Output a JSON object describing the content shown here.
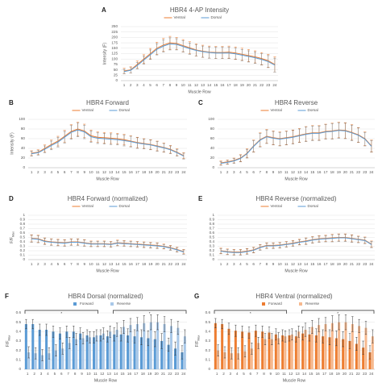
{
  "chart_data": [
    {
      "type": "line",
      "panel": "A",
      "title": "HBR4 4-AP Intensity",
      "x_label": "Muscle Row",
      "y_label": "Intensity (F)",
      "categories": [
        "1",
        "2",
        "3",
        "4",
        "5",
        "6",
        "7",
        "8",
        "9",
        "10",
        "11",
        "12",
        "13",
        "14",
        "15",
        "16",
        "17",
        "18",
        "19",
        "20",
        "21",
        "22",
        "23",
        "24"
      ],
      "ylim": [
        0,
        250
      ],
      "yticks": [
        0,
        25,
        50,
        75,
        100,
        125,
        150,
        175,
        200,
        225,
        250
      ],
      "grid": true,
      "series": [
        {
          "name": "Ventral",
          "color": "#ed7d31",
          "values": [
            45,
            50,
            75,
            100,
            125,
            150,
            165,
            175,
            172,
            162,
            152,
            142,
            136,
            132,
            130,
            130,
            132,
            128,
            122,
            116,
            110,
            102,
            92,
            75
          ],
          "errors": [
            12,
            14,
            16,
            20,
            24,
            28,
            30,
            30,
            28,
            28,
            28,
            28,
            28,
            28,
            28,
            28,
            28,
            28,
            28,
            28,
            28,
            28,
            30,
            35
          ]
        },
        {
          "name": "Dorsal",
          "color": "#5b9bd5",
          "values": [
            42,
            48,
            70,
            95,
            120,
            145,
            160,
            170,
            168,
            158,
            148,
            140,
            134,
            130,
            128,
            128,
            128,
            124,
            118,
            112,
            106,
            98,
            88,
            72
          ],
          "errors": [
            10,
            12,
            15,
            18,
            22,
            26,
            28,
            28,
            26,
            26,
            26,
            26,
            26,
            26,
            26,
            26,
            26,
            26,
            26,
            26,
            26,
            26,
            28,
            32
          ]
        }
      ]
    },
    {
      "type": "line",
      "panel": "B",
      "title": "HBR4 Forward",
      "x_label": "Muscle Row",
      "y_label": "Intensity (F)",
      "categories": [
        "1",
        "2",
        "3",
        "4",
        "5",
        "6",
        "7",
        "8",
        "9",
        "10",
        "11",
        "12",
        "13",
        "14",
        "15",
        "16",
        "17",
        "18",
        "19",
        "20",
        "21",
        "22",
        "23",
        "24"
      ],
      "ylim": [
        0,
        100
      ],
      "yticks": [
        0,
        20,
        40,
        60,
        80,
        100
      ],
      "grid": true,
      "series": [
        {
          "name": "Ventral",
          "color": "#ed7d31",
          "values": [
            30,
            32,
            40,
            48,
            55,
            65,
            75,
            80,
            76,
            66,
            63,
            62,
            61,
            60,
            58,
            55,
            52,
            50,
            48,
            45,
            42,
            38,
            32,
            25
          ],
          "errors": [
            5,
            5,
            7,
            9,
            10,
            12,
            14,
            14,
            14,
            12,
            11,
            11,
            11,
            11,
            11,
            11,
            11,
            10,
            10,
            10,
            9,
            8,
            7,
            6
          ]
        },
        {
          "name": "Dorsal",
          "color": "#5b9bd5",
          "values": [
            29,
            31,
            38,
            46,
            53,
            63,
            73,
            78,
            74,
            64,
            61,
            60,
            59,
            58,
            56,
            54,
            51,
            49,
            47,
            44,
            41,
            37,
            31,
            24
          ],
          "errors": [
            5,
            5,
            7,
            9,
            10,
            12,
            14,
            14,
            14,
            12,
            11,
            11,
            11,
            11,
            11,
            11,
            11,
            10,
            10,
            10,
            9,
            8,
            7,
            6
          ]
        }
      ]
    },
    {
      "type": "line",
      "panel": "C",
      "title": "HBR4 Reverse",
      "x_label": "Muscle Row",
      "categories": [
        "1",
        "2",
        "3",
        "4",
        "5",
        "6",
        "7",
        "8",
        "9",
        "10",
        "11",
        "12",
        "13",
        "14",
        "15",
        "16",
        "17",
        "18",
        "19",
        "20",
        "21",
        "22",
        "23",
        "24"
      ],
      "ylim": [
        0,
        100
      ],
      "yticks": [
        0,
        20,
        40,
        60,
        80,
        100
      ],
      "grid": true,
      "series": [
        {
          "name": "Ventral",
          "color": "#ed7d31",
          "values": [
            10,
            12,
            15,
            20,
            30,
            45,
            58,
            65,
            62,
            60,
            62,
            64,
            67,
            70,
            72,
            72,
            75,
            76,
            78,
            77,
            73,
            68,
            60,
            45
          ],
          "errors": [
            4,
            4,
            5,
            7,
            9,
            12,
            14,
            14,
            14,
            14,
            14,
            14,
            14,
            15,
            15,
            15,
            15,
            16,
            16,
            16,
            16,
            15,
            14,
            12
          ]
        },
        {
          "name": "Dorsal",
          "color": "#5b9bd5",
          "values": [
            9,
            11,
            14,
            19,
            29,
            44,
            57,
            64,
            61,
            59,
            61,
            63,
            66,
            69,
            71,
            71,
            74,
            75,
            77,
            76,
            72,
            67,
            59,
            44
          ],
          "errors": [
            4,
            4,
            5,
            7,
            9,
            12,
            14,
            14,
            14,
            14,
            14,
            14,
            14,
            15,
            15,
            15,
            15,
            16,
            16,
            16,
            16,
            15,
            14,
            12
          ]
        }
      ]
    },
    {
      "type": "line",
      "panel": "D",
      "title": "HBR4 Forward (normalized)",
      "x_label": "Muscle Row",
      "y_label": {
        "main": "F/F",
        "sub": "Max"
      },
      "categories": [
        "1",
        "2",
        "3",
        "4",
        "5",
        "6",
        "7",
        "8",
        "9",
        "10",
        "11",
        "12",
        "13",
        "14",
        "15",
        "16",
        "17",
        "18",
        "19",
        "20",
        "21",
        "22",
        "23",
        "24"
      ],
      "ylim": [
        0,
        1
      ],
      "yticks": [
        0,
        0.1,
        0.2,
        0.3,
        0.4,
        0.5,
        0.6,
        0.7,
        0.8,
        0.9,
        1
      ],
      "grid": true,
      "series": [
        {
          "name": "Ventral",
          "color": "#ed7d31",
          "values": [
            0.48,
            0.47,
            0.42,
            0.4,
            0.39,
            0.38,
            0.4,
            0.4,
            0.38,
            0.36,
            0.36,
            0.36,
            0.35,
            0.38,
            0.37,
            0.36,
            0.35,
            0.34,
            0.33,
            0.32,
            0.3,
            0.27,
            0.23,
            0.18
          ],
          "errors": [
            0.08,
            0.08,
            0.07,
            0.07,
            0.07,
            0.07,
            0.07,
            0.07,
            0.07,
            0.06,
            0.06,
            0.06,
            0.06,
            0.06,
            0.06,
            0.06,
            0.06,
            0.06,
            0.06,
            0.06,
            0.05,
            0.05,
            0.05,
            0.05
          ]
        },
        {
          "name": "Dorsal",
          "color": "#5b9bd5",
          "values": [
            0.47,
            0.46,
            0.41,
            0.39,
            0.38,
            0.37,
            0.39,
            0.39,
            0.37,
            0.35,
            0.35,
            0.35,
            0.34,
            0.37,
            0.36,
            0.35,
            0.34,
            0.33,
            0.32,
            0.31,
            0.29,
            0.26,
            0.22,
            0.17
          ],
          "errors": [
            0.08,
            0.08,
            0.07,
            0.07,
            0.07,
            0.07,
            0.07,
            0.07,
            0.07,
            0.06,
            0.06,
            0.06,
            0.06,
            0.06,
            0.06,
            0.06,
            0.06,
            0.06,
            0.06,
            0.06,
            0.05,
            0.05,
            0.05,
            0.05
          ]
        }
      ]
    },
    {
      "type": "line",
      "panel": "E",
      "title": "HBR4 Reverse (normalized)",
      "x_label": "Muscle Row",
      "categories": [
        "1",
        "2",
        "3",
        "4",
        "5",
        "6",
        "7",
        "8",
        "9",
        "10",
        "11",
        "12",
        "13",
        "14",
        "15",
        "16",
        "17",
        "18",
        "19",
        "20",
        "21",
        "22",
        "23",
        "24"
      ],
      "ylim": [
        0,
        1
      ],
      "yticks": [
        0,
        0.1,
        0.2,
        0.3,
        0.4,
        0.5,
        0.6,
        0.7,
        0.8,
        0.9,
        1
      ],
      "grid": true,
      "series": [
        {
          "name": "Ventral",
          "color": "#ed7d31",
          "values": [
            0.2,
            0.18,
            0.17,
            0.17,
            0.19,
            0.22,
            0.28,
            0.32,
            0.32,
            0.33,
            0.35,
            0.37,
            0.4,
            0.42,
            0.45,
            0.47,
            0.48,
            0.49,
            0.5,
            0.5,
            0.48,
            0.46,
            0.44,
            0.35
          ],
          "errors": [
            0.06,
            0.06,
            0.06,
            0.06,
            0.06,
            0.06,
            0.06,
            0.06,
            0.06,
            0.06,
            0.06,
            0.06,
            0.06,
            0.07,
            0.07,
            0.07,
            0.07,
            0.08,
            0.08,
            0.08,
            0.08,
            0.07,
            0.07,
            0.07
          ]
        },
        {
          "name": "Dorsal",
          "color": "#5b9bd5",
          "values": [
            0.19,
            0.17,
            0.16,
            0.16,
            0.18,
            0.21,
            0.27,
            0.31,
            0.31,
            0.32,
            0.34,
            0.36,
            0.39,
            0.41,
            0.44,
            0.46,
            0.47,
            0.48,
            0.49,
            0.49,
            0.47,
            0.45,
            0.43,
            0.34
          ],
          "errors": [
            0.06,
            0.06,
            0.06,
            0.06,
            0.06,
            0.06,
            0.06,
            0.06,
            0.06,
            0.06,
            0.06,
            0.06,
            0.06,
            0.07,
            0.07,
            0.07,
            0.07,
            0.08,
            0.08,
            0.08,
            0.08,
            0.07,
            0.07,
            0.07
          ]
        }
      ]
    },
    {
      "type": "bar",
      "panel": "F",
      "title": "HBR4 Dorsal (normalized)",
      "x_label": "Muscle Row",
      "y_label": {
        "main": "F/F",
        "sub": "Max"
      },
      "categories": [
        "1",
        "2",
        "3",
        "4",
        "5",
        "6",
        "7",
        "8",
        "9",
        "10",
        "11",
        "12",
        "13",
        "14",
        "15",
        "16",
        "17",
        "18",
        "19",
        "20",
        "21",
        "22",
        "23",
        "24"
      ],
      "ylim": [
        0,
        0.6
      ],
      "yticks": [
        0,
        0.1,
        0.2,
        0.3,
        0.4,
        0.5,
        0.6
      ],
      "grid": true,
      "annotations": [
        "*",
        "*"
      ],
      "series": [
        {
          "name": "Forward",
          "color": "#5b9bd5",
          "values": [
            0.48,
            0.48,
            0.42,
            0.42,
            0.4,
            0.38,
            0.4,
            0.4,
            0.38,
            0.36,
            0.34,
            0.36,
            0.35,
            0.37,
            0.37,
            0.36,
            0.35,
            0.34,
            0.33,
            0.32,
            0.3,
            0.26,
            0.22,
            0.18
          ],
          "errors": [
            0.05,
            0.05,
            0.06,
            0.06,
            0.06,
            0.06,
            0.06,
            0.06,
            0.06,
            0.06,
            0.06,
            0.06,
            0.06,
            0.07,
            0.07,
            0.07,
            0.07,
            0.08,
            0.08,
            0.08,
            0.08,
            0.07,
            0.07,
            0.07
          ]
        },
        {
          "name": "Reverse",
          "color": "#a9c8e8",
          "values": [
            0.18,
            0.17,
            0.15,
            0.17,
            0.2,
            0.22,
            0.28,
            0.32,
            0.33,
            0.34,
            0.36,
            0.38,
            0.4,
            0.42,
            0.45,
            0.47,
            0.48,
            0.49,
            0.5,
            0.5,
            0.48,
            0.46,
            0.44,
            0.35
          ],
          "errors": [
            0.06,
            0.06,
            0.06,
            0.06,
            0.06,
            0.06,
            0.06,
            0.06,
            0.06,
            0.06,
            0.06,
            0.06,
            0.06,
            0.07,
            0.07,
            0.07,
            0.07,
            0.08,
            0.08,
            0.08,
            0.08,
            0.07,
            0.07,
            0.07
          ]
        }
      ]
    },
    {
      "type": "bar",
      "panel": "G",
      "title": "HBR4 Ventral (normalized)",
      "x_label": "Muscle Row",
      "y_label": {
        "main": "F/F",
        "sub": "Max"
      },
      "categories": [
        "1",
        "2",
        "3",
        "4",
        "5",
        "6",
        "7",
        "8",
        "9",
        "10",
        "11",
        "12",
        "13",
        "14",
        "15",
        "16",
        "17",
        "18",
        "19",
        "20",
        "21",
        "22",
        "23",
        "24"
      ],
      "ylim": [
        0,
        0.6
      ],
      "yticks": [
        0,
        0.1,
        0.2,
        0.3,
        0.4,
        0.5,
        0.6
      ],
      "grid": true,
      "annotations": [
        "*",
        "*"
      ],
      "series": [
        {
          "name": "Forward",
          "color": "#ed7d31",
          "values": [
            0.49,
            0.48,
            0.43,
            0.41,
            0.4,
            0.39,
            0.41,
            0.4,
            0.39,
            0.37,
            0.36,
            0.36,
            0.35,
            0.38,
            0.37,
            0.36,
            0.35,
            0.34,
            0.33,
            0.32,
            0.3,
            0.27,
            0.23,
            0.18
          ],
          "errors": [
            0.05,
            0.05,
            0.06,
            0.06,
            0.06,
            0.06,
            0.06,
            0.06,
            0.06,
            0.06,
            0.06,
            0.06,
            0.06,
            0.07,
            0.07,
            0.07,
            0.07,
            0.08,
            0.08,
            0.08,
            0.08,
            0.07,
            0.07,
            0.07
          ]
        },
        {
          "name": "Reverse",
          "color": "#f6b98f",
          "values": [
            0.2,
            0.18,
            0.17,
            0.17,
            0.19,
            0.22,
            0.28,
            0.32,
            0.32,
            0.33,
            0.35,
            0.37,
            0.4,
            0.42,
            0.45,
            0.47,
            0.48,
            0.49,
            0.5,
            0.5,
            0.48,
            0.46,
            0.44,
            0.35
          ],
          "errors": [
            0.06,
            0.06,
            0.06,
            0.06,
            0.06,
            0.06,
            0.06,
            0.06,
            0.06,
            0.06,
            0.06,
            0.06,
            0.06,
            0.07,
            0.07,
            0.07,
            0.07,
            0.08,
            0.08,
            0.08,
            0.08,
            0.07,
            0.07,
            0.07
          ]
        }
      ]
    }
  ]
}
